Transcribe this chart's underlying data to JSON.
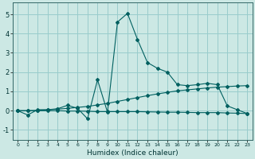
{
  "xlabel": "Humidex (Indice chaleur)",
  "ylabel": "",
  "background_color": "#cce8e4",
  "grid_color": "#99cccc",
  "line_color": "#006060",
  "xlim": [
    -0.5,
    23.5
  ],
  "ylim": [
    -1.5,
    5.6
  ],
  "yticks": [
    -1,
    0,
    1,
    2,
    3,
    4,
    5
  ],
  "xticks": [
    0,
    1,
    2,
    3,
    4,
    5,
    6,
    7,
    8,
    9,
    10,
    11,
    12,
    13,
    14,
    15,
    16,
    17,
    18,
    19,
    20,
    21,
    22,
    23
  ],
  "line1_x": [
    0,
    1,
    2,
    3,
    4,
    5,
    6,
    7,
    8,
    9,
    10,
    11,
    12,
    13,
    14,
    15,
    16,
    17,
    18,
    19,
    20,
    21,
    22,
    23
  ],
  "line1_y": [
    0.0,
    -0.22,
    0.05,
    0.05,
    0.1,
    0.28,
    0.12,
    -0.42,
    1.6,
    -0.08,
    4.6,
    5.05,
    3.7,
    2.5,
    2.2,
    2.0,
    1.35,
    1.3,
    1.35,
    1.42,
    1.35,
    0.25,
    0.05,
    -0.15
  ],
  "line2_x": [
    0,
    1,
    2,
    3,
    4,
    5,
    6,
    7,
    8,
    9,
    10,
    11,
    12,
    13,
    14,
    15,
    16,
    17,
    18,
    19,
    20,
    21,
    22,
    23
  ],
  "line2_y": [
    0.0,
    0.0,
    0.02,
    0.04,
    0.08,
    0.12,
    0.17,
    0.22,
    0.3,
    0.38,
    0.48,
    0.58,
    0.68,
    0.78,
    0.87,
    0.95,
    1.03,
    1.08,
    1.13,
    1.18,
    1.22,
    1.25,
    1.28,
    1.3
  ],
  "line3_x": [
    0,
    1,
    2,
    3,
    4,
    5,
    6,
    7,
    8,
    9,
    10,
    11,
    12,
    13,
    14,
    15,
    16,
    17,
    18,
    19,
    20,
    21,
    22,
    23
  ],
  "line3_y": [
    0.0,
    0.0,
    0.0,
    0.0,
    0.0,
    -0.02,
    -0.02,
    -0.03,
    -0.05,
    -0.05,
    -0.05,
    -0.05,
    -0.05,
    -0.06,
    -0.07,
    -0.08,
    -0.08,
    -0.09,
    -0.1,
    -0.1,
    -0.1,
    -0.12,
    -0.13,
    -0.15
  ]
}
